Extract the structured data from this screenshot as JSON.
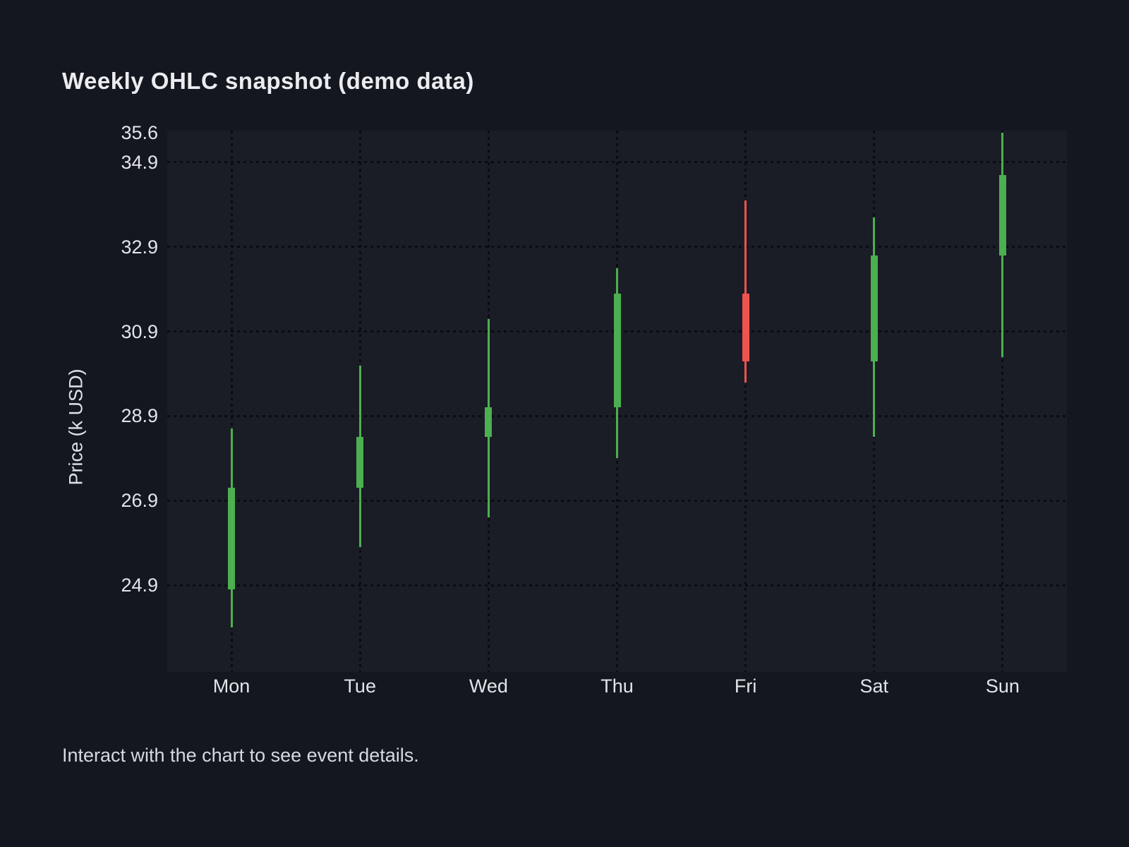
{
  "page": {
    "background": "#14171f",
    "footer": "Interact with the chart to see event details."
  },
  "chart_data": {
    "type": "candlestick",
    "title": "Weekly OHLC snapshot (demo data)",
    "xlabel": "",
    "ylabel": "Price (k USD)",
    "categories": [
      "Mon",
      "Tue",
      "Wed",
      "Thu",
      "Fri",
      "Sat",
      "Sun"
    ],
    "series": [
      {
        "name": "OHLC",
        "values": [
          {
            "open": 24.8,
            "high": 28.6,
            "low": 23.9,
            "close": 27.2
          },
          {
            "open": 27.2,
            "high": 30.1,
            "low": 25.8,
            "close": 28.4
          },
          {
            "open": 28.4,
            "high": 31.2,
            "low": 26.5,
            "close": 29.1
          },
          {
            "open": 29.1,
            "high": 32.4,
            "low": 27.9,
            "close": 31.8
          },
          {
            "open": 31.8,
            "high": 34.0,
            "low": 29.7,
            "close": 30.2
          },
          {
            "open": 30.2,
            "high": 33.6,
            "low": 28.4,
            "close": 32.7
          },
          {
            "open": 32.7,
            "high": 35.6,
            "low": 30.3,
            "close": 34.6
          }
        ]
      }
    ],
    "yticks": [
      {
        "label": "35.6",
        "value": 35.6,
        "gridline": false
      },
      {
        "label": "34.9",
        "value": 34.9,
        "gridline": true
      },
      {
        "label": "32.9",
        "value": 32.9,
        "gridline": true
      },
      {
        "label": "30.9",
        "value": 30.9,
        "gridline": true
      },
      {
        "label": "28.9",
        "value": 28.9,
        "gridline": true
      },
      {
        "label": "26.9",
        "value": 26.9,
        "gridline": true
      },
      {
        "label": "24.9",
        "value": 24.9,
        "gridline": true
      }
    ],
    "ylim": [
      22.85,
      35.65
    ],
    "grid": "dotted",
    "legend": "none",
    "up_color": "#4caf50",
    "down_color": "#ef5350",
    "plot_background": "#1a1d26",
    "grid_color": "#0a0c11",
    "text_color": "#e2e4e8"
  }
}
